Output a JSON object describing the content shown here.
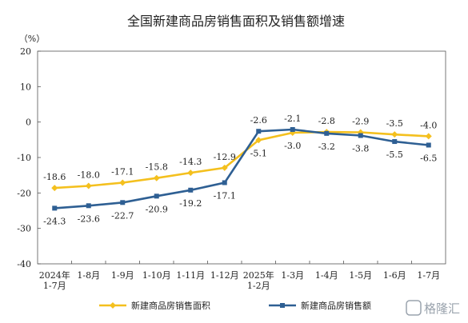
{
  "chart_data": {
    "type": "line",
    "title": "全国新建商品房销售面积及销售额增速",
    "unit": "（%）",
    "categories": [
      [
        "2024年",
        "1-7月"
      ],
      [
        "1-8月"
      ],
      [
        "1-9月"
      ],
      [
        "1-10月"
      ],
      [
        "1-11月"
      ],
      [
        "1-12月"
      ],
      [
        "2025年",
        "1-2月"
      ],
      [
        "1-3月"
      ],
      [
        "1-4月"
      ],
      [
        "1-5月"
      ],
      [
        "1-6月"
      ],
      [
        "1-7月"
      ]
    ],
    "ylim": [
      -40,
      20
    ],
    "yticks": [
      20,
      10,
      0,
      -10,
      -20,
      -30,
      -40
    ],
    "series": [
      {
        "name": "新建商品房销售面积",
        "color": "#f4c01e",
        "marker": "diamond",
        "values": [
          -18.6,
          -18.0,
          -17.1,
          -15.8,
          -14.3,
          -12.9,
          -5.1,
          -3.0,
          -2.8,
          -2.9,
          -3.5,
          -4.0
        ],
        "labels": [
          "-18.6",
          "-18.0",
          "-17.1",
          "-15.8",
          "-14.3",
          "-12.9",
          "-5.1",
          "-3.0",
          "-2.8",
          "-2.9",
          "-3.5",
          "-4.0"
        ],
        "label_side": [
          "above",
          "above",
          "above",
          "above",
          "above",
          "above",
          "below",
          "below",
          "above",
          "above",
          "above",
          "above"
        ]
      },
      {
        "name": "新建商品房销售额",
        "color": "#2e5f93",
        "marker": "square",
        "values": [
          -24.3,
          -23.6,
          -22.7,
          -20.9,
          -19.2,
          -17.1,
          -2.6,
          -2.1,
          -3.2,
          -3.8,
          -5.5,
          -6.5
        ],
        "labels": [
          "-24.3",
          "-23.6",
          "-22.7",
          "-20.9",
          "-19.2",
          "-17.1",
          "-2.6",
          "-2.1",
          "-3.2",
          "-3.8",
          "-5.5",
          "-6.5"
        ],
        "label_side": [
          "below",
          "below",
          "below",
          "below",
          "below",
          "below",
          "above",
          "above",
          "below",
          "below",
          "below",
          "below"
        ]
      }
    ],
    "legend": "bottom",
    "grid": false
  },
  "watermark": "格隆汇"
}
